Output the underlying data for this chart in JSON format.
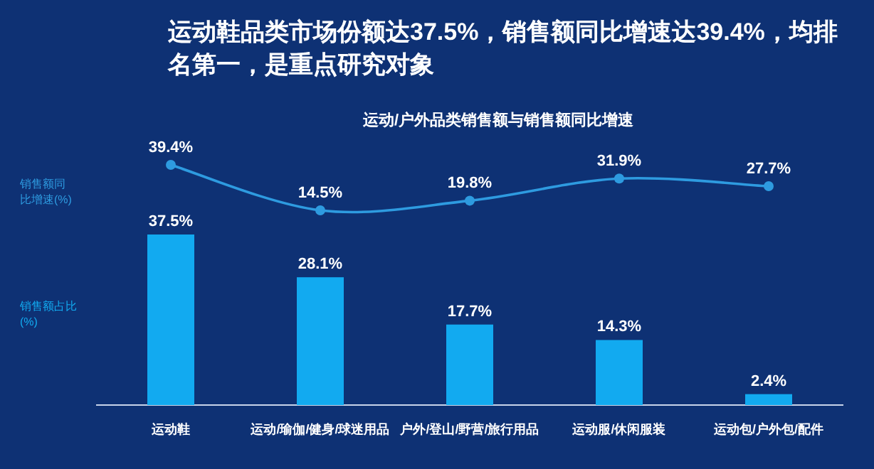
{
  "chart_data": [
    {
      "type": "line",
      "title": "运动鞋品类市场份额达37.5%，销售额同比增速达39.4%，均排名第一，是重点研究对象",
      "subtitle": "运动/户外品类销售额与销售额同比增速",
      "categories": [
        null,
        null,
        null,
        null,
        null
      ],
      "series": [
        {
          "name": "销售额同比增速(%)",
          "color": "#2e9be0",
          "values": [
            39.4,
            14.5,
            19.8,
            31.9,
            27.7
          ],
          "value_labels": [
            "39.4%",
            "14.5%",
            "19.8%",
            "31.9%",
            "27.7%"
          ]
        }
      ],
      "marker": "circle"
    },
    {
      "type": "bar",
      "categories": [
        "运动鞋",
        "运动/瑜伽/健身/球迷用品",
        "户外/登山/野营/旅行用品",
        "运动服/休闲服装",
        "运动包/户外包/配件"
      ],
      "series": [
        {
          "name": "销售额占比(%)",
          "color": "#12aaf0",
          "values": [
            37.5,
            28.1,
            17.7,
            14.3,
            2.4
          ],
          "value_labels": [
            "37.5%",
            "28.1%",
            "17.7%",
            "14.3%",
            "2.4%"
          ]
        }
      ]
    }
  ]
}
